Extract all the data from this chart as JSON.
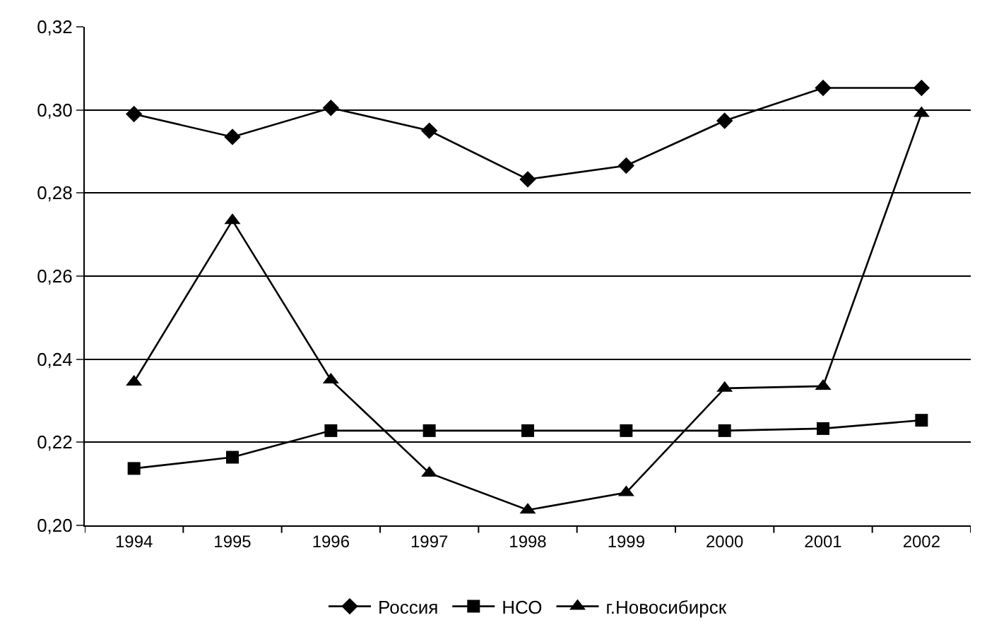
{
  "chart_data": {
    "type": "line",
    "categories": [
      "1994",
      "1995",
      "1996",
      "1997",
      "1998",
      "1999",
      "2000",
      "2001",
      "2002"
    ],
    "series": [
      {
        "name": "Россия",
        "color": "#000000",
        "marker": "diamond",
        "values": [
          0.299,
          0.2935,
          0.3005,
          0.295,
          0.2833,
          0.2866,
          0.2974,
          0.3053,
          0.3053
        ]
      },
      {
        "name": "НСО",
        "color": "#000000",
        "marker": "square",
        "values": [
          0.2137,
          0.2164,
          0.2228,
          0.2228,
          0.2228,
          0.2228,
          0.2228,
          0.2233,
          0.2253
        ]
      },
      {
        "name": "г.Новосибирск",
        "color": "#000000",
        "marker": "triangle",
        "values": [
          0.2345,
          0.2734,
          0.235,
          0.2126,
          0.2037,
          0.2079,
          0.233,
          0.2335,
          0.2992
        ]
      }
    ],
    "ylim": [
      0.2,
      0.32
    ],
    "yticks": [
      {
        "value": 0.2,
        "label": "0,20"
      },
      {
        "value": 0.22,
        "label": "0,22"
      },
      {
        "value": 0.24,
        "label": "0,24"
      },
      {
        "value": 0.26,
        "label": "0,26"
      },
      {
        "value": 0.28,
        "label": "0,28"
      },
      {
        "value": 0.3,
        "label": "0,30"
      },
      {
        "value": 0.32,
        "label": "0,32"
      }
    ],
    "grid": "y",
    "legend": "bottom",
    "line_style": "solid"
  }
}
